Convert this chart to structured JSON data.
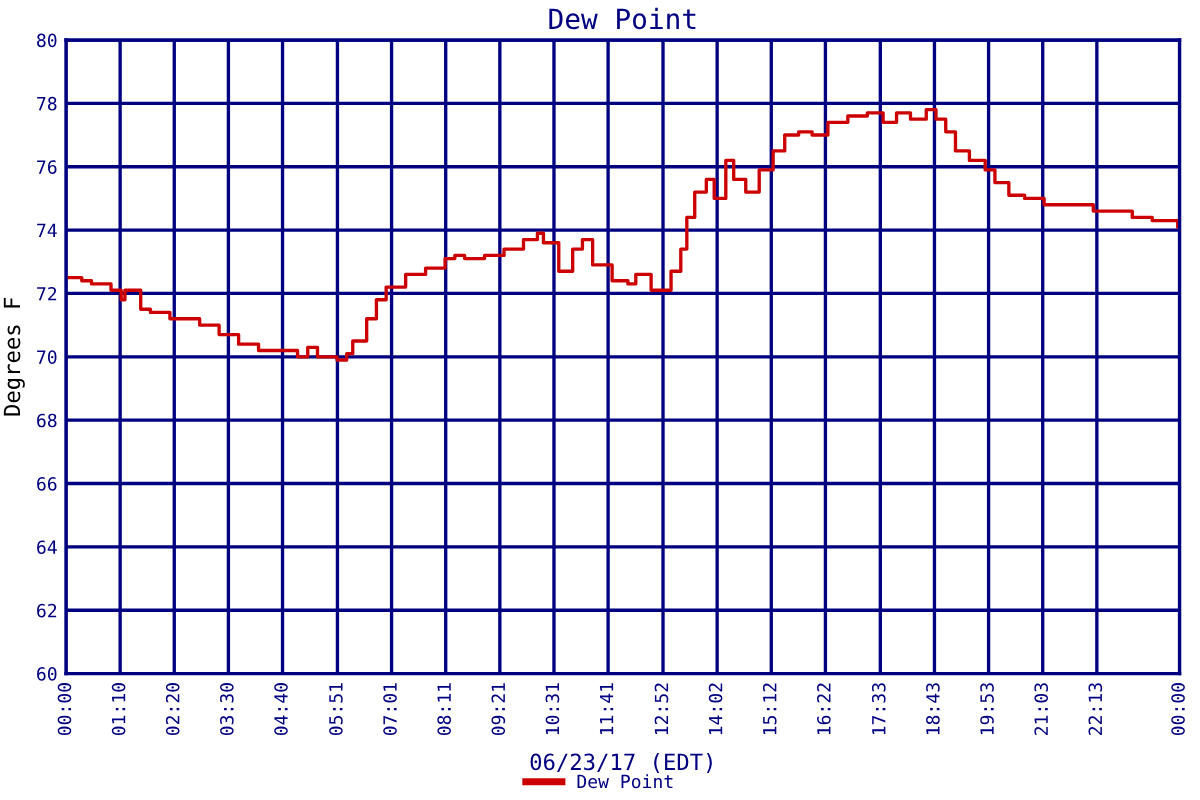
{
  "chart_data": {
    "type": "step",
    "title": "Dew Point",
    "xlabel": "06/23/17 (EDT)",
    "ylabel": "Degrees F",
    "xlim": [
      0,
      24
    ],
    "ylim": [
      60,
      80
    ],
    "yticks": [
      60,
      62,
      64,
      66,
      68,
      70,
      72,
      74,
      76,
      78,
      80
    ],
    "xticks": [
      {
        "value": 0,
        "label": "00:00"
      },
      {
        "value": 1.1667,
        "label": "01:10"
      },
      {
        "value": 2.3333,
        "label": "02:20"
      },
      {
        "value": 3.5,
        "label": "03:30"
      },
      {
        "value": 4.6667,
        "label": "04:40"
      },
      {
        "value": 5.85,
        "label": "05:51"
      },
      {
        "value": 7.0167,
        "label": "07:01"
      },
      {
        "value": 8.1833,
        "label": "08:11"
      },
      {
        "value": 9.35,
        "label": "09:21"
      },
      {
        "value": 10.5167,
        "label": "10:31"
      },
      {
        "value": 11.6833,
        "label": "11:41"
      },
      {
        "value": 12.8667,
        "label": "12:52"
      },
      {
        "value": 14.0333,
        "label": "14:02"
      },
      {
        "value": 15.2,
        "label": "15:12"
      },
      {
        "value": 16.3667,
        "label": "16:22"
      },
      {
        "value": 17.55,
        "label": "17:33"
      },
      {
        "value": 18.7167,
        "label": "18:43"
      },
      {
        "value": 19.8833,
        "label": "19:53"
      },
      {
        "value": 21.05,
        "label": "21:03"
      },
      {
        "value": 22.2167,
        "label": "22:13"
      },
      {
        "value": 24,
        "label": "00:00"
      }
    ],
    "grid": true,
    "legend": "bottom",
    "line_style": "solid",
    "x": [
      0,
      0.34,
      0.55,
      0.97,
      1.19,
      1.27,
      1.61,
      1.82,
      2.24,
      2.67,
      2.88,
      3.3,
      3.72,
      3.94,
      4.15,
      4.57,
      4.99,
      5.21,
      5.42,
      5.84,
      6.05,
      6.18,
      6.48,
      6.69,
      6.9,
      7.32,
      7.75,
      8.17,
      8.38,
      8.59,
      9.02,
      9.44,
      9.86,
      10.16,
      10.29,
      10.62,
      10.92,
      11.13,
      11.35,
      11.77,
      12.11,
      12.28,
      12.61,
      13.04,
      13.25,
      13.38,
      13.55,
      13.8,
      13.97,
      14.22,
      14.39,
      14.65,
      14.94,
      15.24,
      15.49,
      15.79,
      16.08,
      16.42,
      16.85,
      17.27,
      17.61,
      17.9,
      18.2,
      18.54,
      18.75,
      18.96,
      19.17,
      19.47,
      19.81,
      20.02,
      20.32,
      20.66,
      21.08,
      21.5,
      21.84,
      22.14,
      22.56,
      22.98,
      23.41,
      23.7,
      23.96
    ],
    "series": [
      {
        "name": "Dew Point",
        "color": "#cc0000",
        "values": [
          72.5,
          72.4,
          72.3,
          72.1,
          71.8,
          72.1,
          71.5,
          71.4,
          71.2,
          71.2,
          71.0,
          70.7,
          70.4,
          70.4,
          70.2,
          70.2,
          70.0,
          70.3,
          70.0,
          69.9,
          70.1,
          70.5,
          71.2,
          71.8,
          72.2,
          72.6,
          72.8,
          73.1,
          73.2,
          73.1,
          73.2,
          73.4,
          73.7,
          73.9,
          73.6,
          72.7,
          73.4,
          73.7,
          72.9,
          72.4,
          72.3,
          72.6,
          72.1,
          72.7,
          73.4,
          74.4,
          75.2,
          75.6,
          75.0,
          76.2,
          75.6,
          75.2,
          75.9,
          76.5,
          77.0,
          77.1,
          77.0,
          77.4,
          77.6,
          77.7,
          77.4,
          77.7,
          77.5,
          77.8,
          77.5,
          77.1,
          76.5,
          76.2,
          75.9,
          75.5,
          75.1,
          75.0,
          74.8,
          74.8,
          74.8,
          74.6,
          74.6,
          74.4,
          74.3,
          74.3,
          74.1
        ]
      }
    ]
  }
}
